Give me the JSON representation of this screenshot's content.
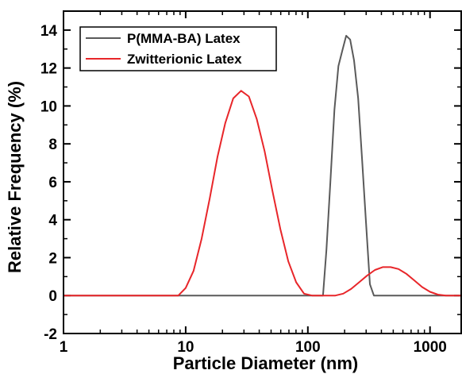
{
  "chart_data": {
    "type": "line",
    "title": "",
    "xlabel": "Particle Diameter (nm)",
    "ylabel": "Relative Frequency (%)",
    "xscale": "log",
    "xlim": [
      1,
      1800
    ],
    "ylim": [
      -2,
      15
    ],
    "xticks": [
      1,
      10,
      100,
      1000
    ],
    "xtick_labels": [
      "1",
      "10",
      "100",
      "1000"
    ],
    "yticks": [
      -2,
      0,
      2,
      4,
      6,
      8,
      10,
      12,
      14
    ],
    "ytick_labels": [
      "-2",
      "0",
      "2",
      "4",
      "6",
      "8",
      "10",
      "12",
      "14"
    ],
    "grid": false,
    "legend_position": "top-left",
    "series": [
      {
        "name": "P(MMA-BA) Latex",
        "color": "#5a5a5a",
        "x": [
          1,
          133,
          142,
          153,
          165,
          178,
          191,
          206,
          222,
          239,
          258,
          278,
          299,
          322,
          347,
          374,
          1800
        ],
        "y": [
          0,
          0,
          2.4,
          6.0,
          9.8,
          12.1,
          12.9,
          13.7,
          13.5,
          12.4,
          10.4,
          7.2,
          3.9,
          0.6,
          0,
          0,
          0
        ]
      },
      {
        "name": "Zwitterionic Latex",
        "color": "#e8262a",
        "x": [
          1,
          8.7,
          10,
          11.6,
          13.5,
          15.7,
          18.2,
          21.1,
          24.5,
          28.4,
          32.9,
          38.2,
          44.3,
          51.4,
          59.6,
          69.2,
          80.2,
          93.1,
          108,
          125,
          145,
          168,
          195,
          226,
          263,
          305,
          354,
          410,
          476,
          552,
          640,
          743,
          862,
          1000,
          1160,
          1350,
          1800
        ],
        "y": [
          0,
          0,
          0.4,
          1.3,
          3.0,
          5.1,
          7.3,
          9.1,
          10.4,
          10.8,
          10.5,
          9.3,
          7.6,
          5.5,
          3.5,
          1.8,
          0.7,
          0.1,
          0,
          0,
          0,
          0,
          0.1,
          0.35,
          0.7,
          1.05,
          1.35,
          1.5,
          1.5,
          1.4,
          1.15,
          0.8,
          0.45,
          0.2,
          0.05,
          0,
          0
        ]
      }
    ]
  }
}
